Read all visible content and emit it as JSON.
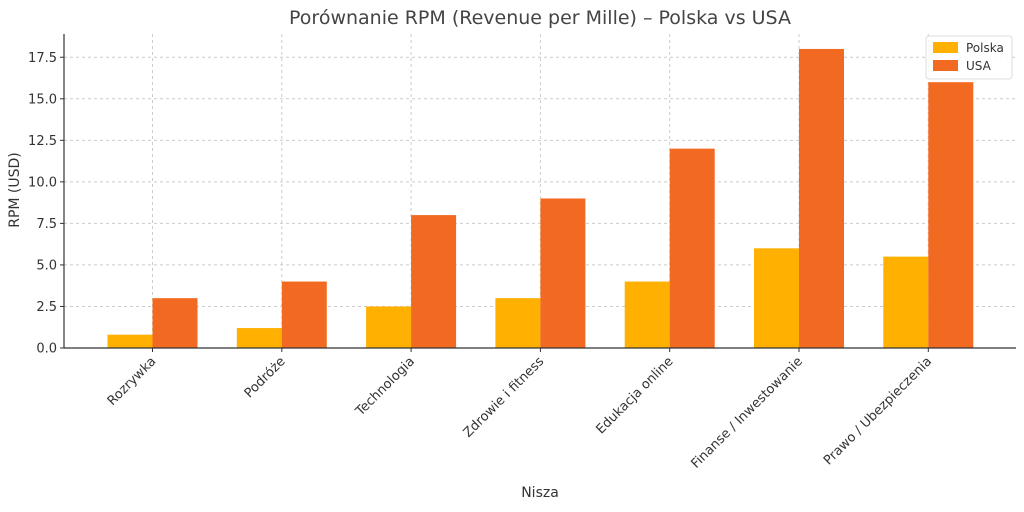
{
  "chart_data": {
    "type": "bar",
    "title": "Porównanie RPM (Revenue per Mille) – Polska vs USA",
    "xlabel": "Nisza",
    "ylabel": "RPM (USD)",
    "categories": [
      "Rozrywka",
      "Podróże",
      "Technologia",
      "Zdrowie i fitness",
      "Edukacja online",
      "Finanse / Inwestowanie",
      "Prawo / Ubezpieczenia"
    ],
    "series": [
      {
        "name": "Polska",
        "color": "#ffb000",
        "values": [
          0.8,
          1.2,
          2.5,
          3.0,
          4.0,
          6.0,
          5.5
        ]
      },
      {
        "name": "USA",
        "color": "#f26a22",
        "values": [
          3.0,
          4.0,
          8.0,
          9.0,
          12.0,
          18.0,
          16.0
        ]
      }
    ],
    "ylim": [
      0,
      18.9
    ],
    "yticks": [
      0.0,
      2.5,
      5.0,
      7.5,
      10.0,
      12.5,
      15.0,
      17.5
    ],
    "ytick_labels": [
      "0.0",
      "2.5",
      "5.0",
      "7.5",
      "10.0",
      "12.5",
      "15.0",
      "17.5"
    ],
    "grid": true,
    "legend_position": "top-right"
  }
}
